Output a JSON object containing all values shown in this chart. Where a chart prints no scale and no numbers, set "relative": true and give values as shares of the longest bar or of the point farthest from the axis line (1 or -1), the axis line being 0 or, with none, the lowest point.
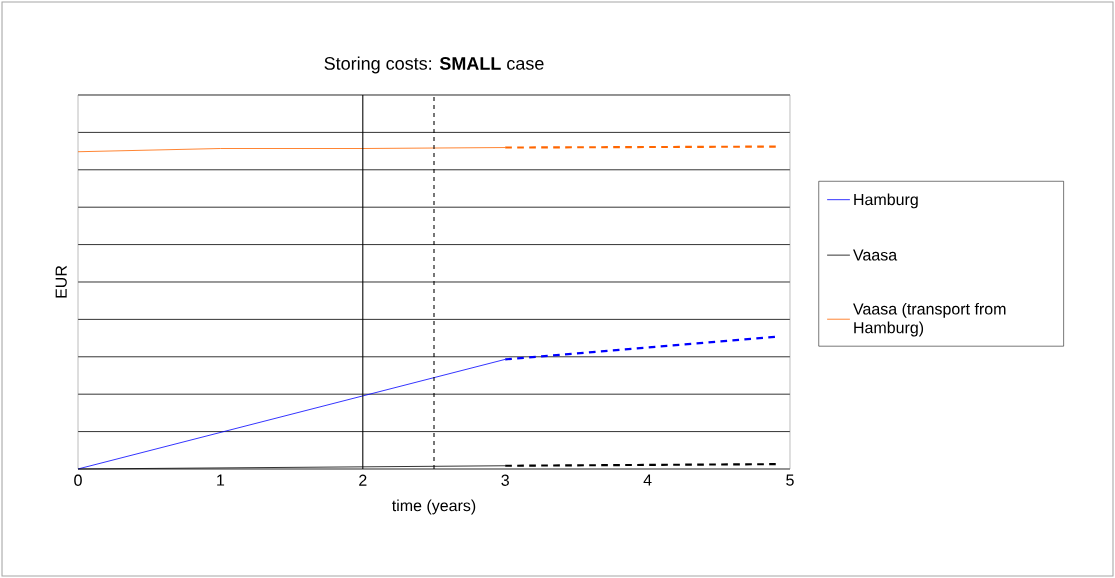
{
  "chart_data": {
    "type": "line",
    "title": "Storing costs: **SMALL** case",
    "xlabel": "time (years)",
    "ylabel": "EUR",
    "relative": true,
    "xlim": [
      0,
      5
    ],
    "xticks": [
      0,
      1,
      2,
      3,
      4,
      5
    ],
    "grid": "y",
    "legend": "right",
    "marker": "none",
    "series": [
      {
        "name": "Hamburg",
        "color": "#0000ff",
        "line_style": "solid",
        "x": [
          0,
          3
        ],
        "values": [
          0,
          0.34
        ]
      },
      {
        "color": "#0000ff",
        "line_style": "dashed",
        "x": [
          3,
          4.9
        ],
        "values": [
          0.34,
          0.41
        ]
      },
      {
        "name": "Vaasa",
        "color": "#000000",
        "line_style": "solid",
        "x": [
          0,
          3
        ],
        "values": [
          0,
          0.01
        ]
      },
      {
        "color": "#000000",
        "line_style": "dashed",
        "x": [
          3,
          4.9
        ],
        "values": [
          0.01,
          0.015
        ]
      },
      {
        "name": "Vaasa (transport from Hamburg)",
        "color": "#ff6600",
        "line_style": "solid",
        "x": [
          0,
          1,
          2,
          3
        ],
        "values": [
          0.984,
          0.994,
          0.994,
          0.997
        ]
      },
      {
        "color": "#ff6600",
        "line_style": "dashed",
        "x": [
          3,
          4.9
        ],
        "values": [
          0.997,
          1.0
        ]
      }
    ],
    "ref_lines": [
      {
        "axis": "x",
        "value": 2,
        "line_style": "solid",
        "color": "#000000"
      },
      {
        "axis": "x",
        "value": 2.5,
        "line_style": "dashed",
        "color": "#000000"
      }
    ]
  }
}
